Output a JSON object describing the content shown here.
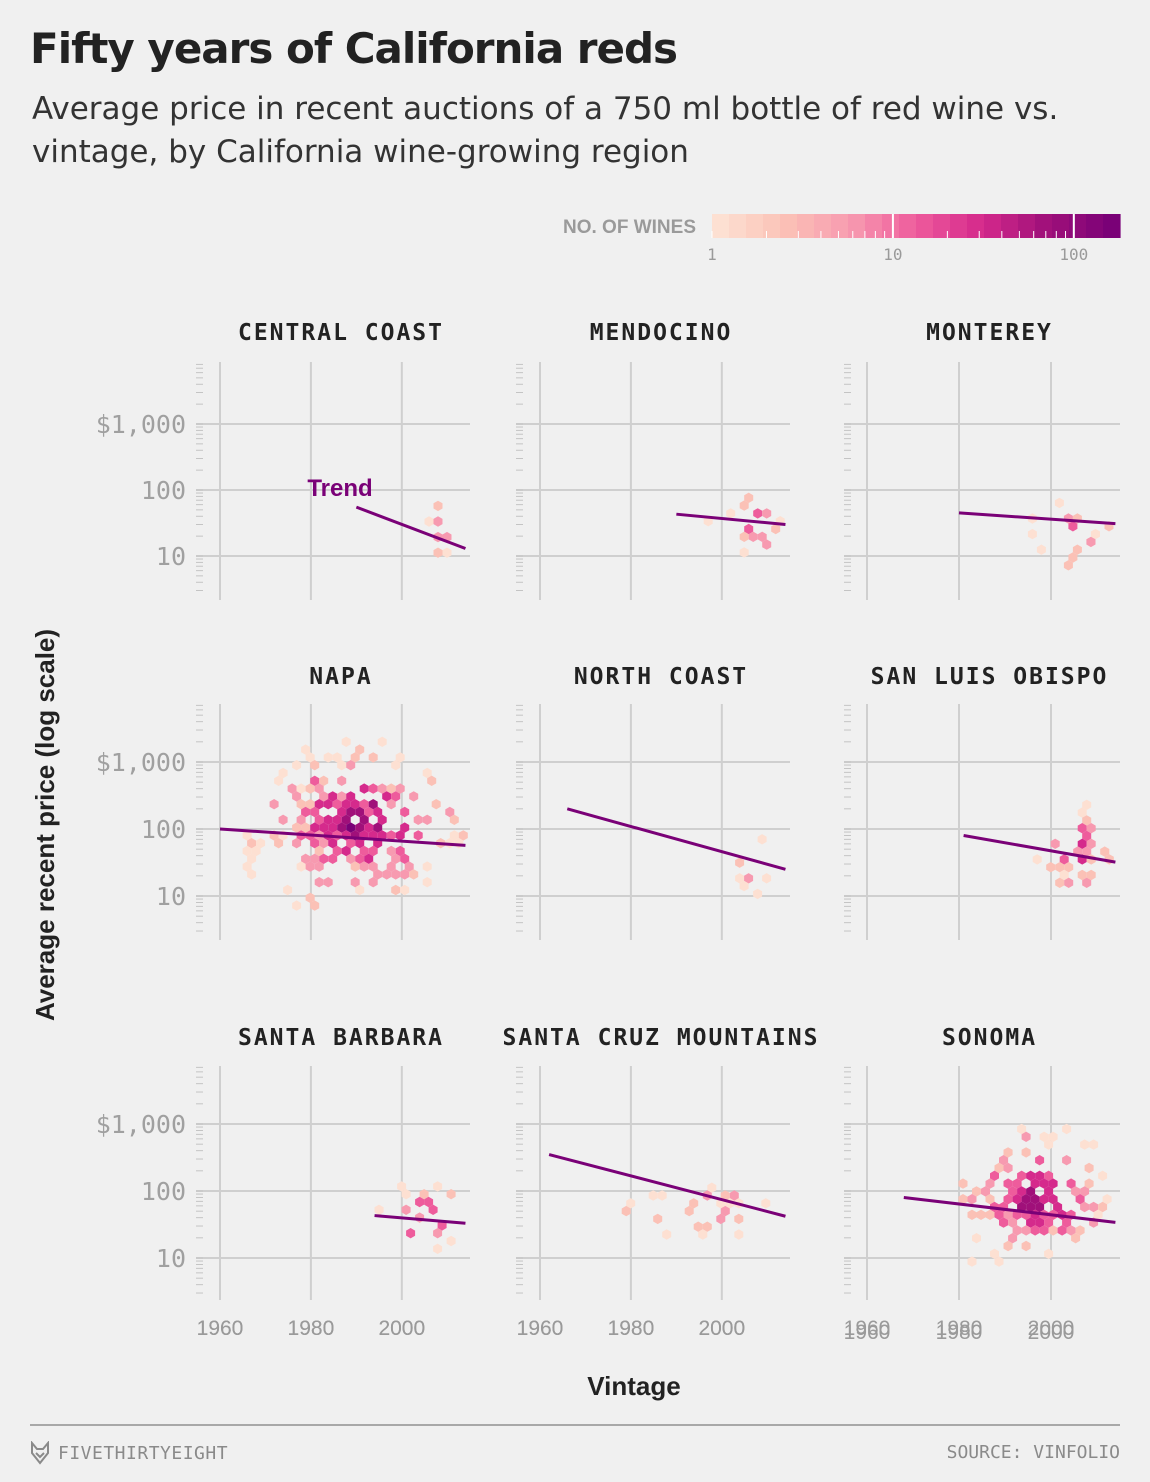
{
  "header": {
    "title": "Fifty years of California reds",
    "subtitle": "Average price in recent auctions of a 750 ml bottle of red wine vs. vintage, by California wine-growing region"
  },
  "legend": {
    "label": "NO. OF WINES",
    "ticks": [
      "1",
      "10",
      "100"
    ],
    "colors": [
      "#fde0d2",
      "#fbc1b6",
      "#f79ab0",
      "#ee5c9c",
      "#d52a8c",
      "#a0107a",
      "#7a0177"
    ]
  },
  "footer": {
    "brand": "FIVETHIRTYEIGHT",
    "source": "SOURCE: VINFOLIO"
  },
  "chart_data": {
    "type": "hexbin-scatter",
    "title": "Fifty years of California reds",
    "xlabel": "Vintage",
    "ylabel": "Average recent price (log scale)",
    "y_scale": "log",
    "xlim": [
      1960,
      2015
    ],
    "ylim": [
      3,
      6000
    ],
    "x_ticks": [
      "1960",
      "1980",
      "2000"
    ],
    "y_ticks": [
      "$1,000",
      "100",
      "10"
    ],
    "y_tick_values": [
      1000,
      100,
      10
    ],
    "trend_annotation": "Trend",
    "grid": true,
    "panels": [
      {
        "region": "CENTRAL COAST",
        "trend": [
          [
            1990,
            55
          ],
          [
            2014,
            13
          ]
        ],
        "cluster": {
          "x": [
            2003,
            2014
          ],
          "y": [
            7,
            130
          ],
          "density": 0.5
        }
      },
      {
        "region": "MENDOCINO",
        "trend": [
          [
            1990,
            43
          ],
          [
            2014,
            30
          ]
        ],
        "cluster": {
          "x": [
            1997,
            2014
          ],
          "y": [
            9,
            100
          ],
          "density": 0.65
        }
      },
      {
        "region": "MONTEREY",
        "trend": [
          [
            1980,
            45
          ],
          [
            2014,
            31
          ]
        ],
        "cluster": {
          "x": [
            1994,
            2014
          ],
          "y": [
            6,
            110
          ],
          "density": 0.6
        }
      },
      {
        "region": "NAPA",
        "trend": [
          [
            1960,
            100
          ],
          [
            2014,
            57
          ]
        ],
        "cluster": {
          "x": [
            1962,
            2014
          ],
          "y": [
            6,
            2000
          ],
          "density": 1.0
        }
      },
      {
        "region": "NORTH COAST",
        "trend": [
          [
            1966,
            200
          ],
          [
            2014,
            25
          ]
        ],
        "cluster": {
          "x": [
            1995,
            2014
          ],
          "y": [
            7,
            120
          ],
          "density": 0.3
        }
      },
      {
        "region": "SAN LUIS OBISPO",
        "trend": [
          [
            1981,
            80
          ],
          [
            2014,
            32
          ]
        ],
        "cluster": {
          "x": [
            1997,
            2014
          ],
          "y": [
            8,
            300
          ],
          "density": 0.75
        }
      },
      {
        "region": "SANTA BARBARA",
        "trend": [
          [
            1994,
            43
          ],
          [
            2014,
            33
          ]
        ],
        "cluster": {
          "x": [
            1994,
            2014
          ],
          "y": [
            9,
            200
          ],
          "density": 0.7
        }
      },
      {
        "region": "SANTA CRUZ MOUNTAINS",
        "trend": [
          [
            1962,
            350
          ],
          [
            2014,
            42
          ]
        ],
        "cluster": {
          "x": [
            1975,
            2014
          ],
          "y": [
            15,
            250
          ],
          "density": 0.35
        }
      },
      {
        "region": "SONOMA",
        "trend": [
          [
            1968,
            80
          ],
          [
            2014,
            34
          ]
        ],
        "cluster": {
          "x": [
            1975,
            2014
          ],
          "y": [
            6,
            1100
          ],
          "density": 0.95
        }
      }
    ]
  }
}
